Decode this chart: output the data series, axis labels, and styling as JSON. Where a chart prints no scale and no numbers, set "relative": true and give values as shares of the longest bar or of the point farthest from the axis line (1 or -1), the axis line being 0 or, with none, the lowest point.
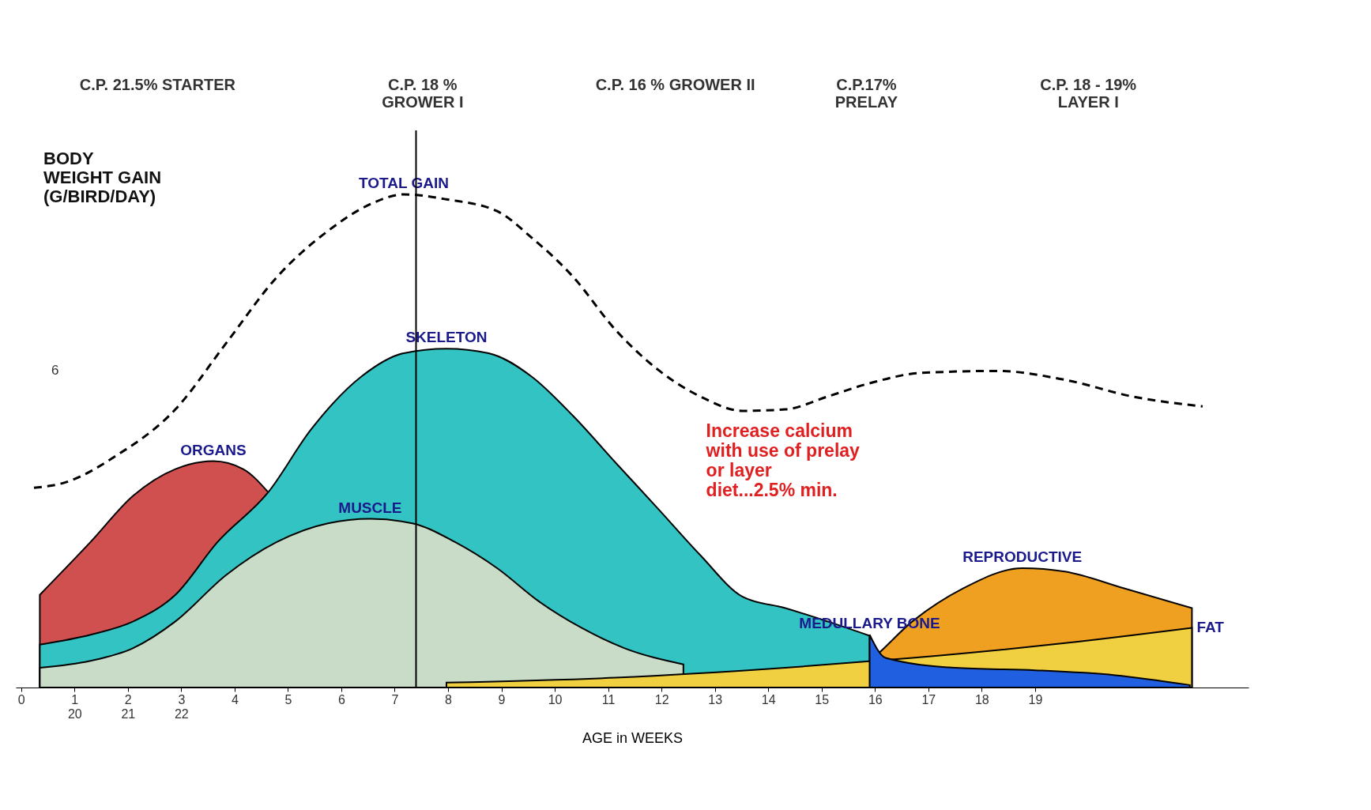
{
  "chart_data": {
    "type": "area",
    "relative": true,
    "xlabel": "AGE in WEEKS",
    "ylabel": "BODY\nWEIGHT GAIN\n(G/BIRD/DAY)",
    "grid": false,
    "xlim": [
      -0.1,
      23
    ],
    "xticks": [
      0,
      {
        "value": 1,
        "label": "1\n20"
      },
      {
        "value": 2,
        "label": "2\n21"
      },
      {
        "value": 3,
        "label": "3\n22"
      },
      4,
      5,
      6,
      7,
      8,
      9,
      10,
      11,
      12,
      13,
      14,
      15,
      16,
      17,
      18,
      19
    ],
    "ref_lines": [
      {
        "axis": "x",
        "value": 7.4
      }
    ],
    "series": [
      {
        "name": "ORGANS",
        "color": "#d05050",
        "x": [
          0.35,
          1.3,
          2.1,
          2.89,
          3.6,
          4.16,
          4.63
        ],
        "values": [
          0.188,
          0.295,
          0.389,
          0.443,
          0.459,
          0.443,
          0.396
        ]
      },
      {
        "name": "SKELETON",
        "color": "#33c3c3",
        "x": [
          0.35,
          1.3,
          2.1,
          2.89,
          3.68,
          4.63,
          5.43,
          6.38,
          7.17,
          7.97,
          8.76,
          9.56,
          10.35,
          11.14,
          11.94,
          12.73,
          13.52,
          14.32,
          15.11,
          15.9
        ],
        "values": [
          0.087,
          0.107,
          0.134,
          0.188,
          0.295,
          0.396,
          0.523,
          0.631,
          0.678,
          0.687,
          0.678,
          0.631,
          0.55,
          0.456,
          0.362,
          0.268,
          0.184,
          0.161,
          0.134,
          0.105
        ]
      },
      {
        "name": "MUSCLE",
        "color": "#c8dcc8",
        "x": [
          0.35,
          1.3,
          2.1,
          2.89,
          3.84,
          4.79,
          5.75,
          6.54,
          7.33,
          8.13,
          8.92,
          9.71,
          10.5,
          11.3,
          12.41
        ],
        "values": [
          0.04,
          0.054,
          0.08,
          0.134,
          0.228,
          0.295,
          0.333,
          0.342,
          0.333,
          0.295,
          0.242,
          0.174,
          0.121,
          0.08,
          0.047
        ]
      },
      {
        "name": "REPRODUCTIVE",
        "color": "#f0a020",
        "x": [
          14.95,
          15.9,
          16.7,
          17.65,
          18.76,
          19.56,
          20.67,
          21.94
        ],
        "values": [
          0,
          0.054,
          0.134,
          0.201,
          0.242,
          0.235,
          0.201,
          0.161
        ]
      },
      {
        "name": "FAT",
        "color": "#f0d040",
        "x": [
          7.97,
          11.14,
          14.32,
          16.7,
          19.56,
          21.94
        ],
        "values": [
          0.01,
          0.02,
          0.04,
          0.06,
          0.09,
          0.121
        ]
      },
      {
        "name": "MEDULLARY BONE",
        "color": "#2060e0",
        "x": [
          15.9,
          16.2,
          17.5,
          19,
          20.5,
          21.9
        ],
        "values": [
          0.107,
          0.06,
          0.04,
          0.035,
          0.025,
          0.005
        ]
      },
      {
        "name": "TOTAL GAIN",
        "type": "line",
        "line_style": "dashed",
        "color": "#000000",
        "x": [
          0.24,
          0.83,
          1.78,
          2.89,
          3.84,
          4.79,
          5.75,
          6.54,
          7.17,
          7.97,
          8.92,
          9.56,
          10.35,
          11.14,
          11.94,
          12.73,
          13.52,
          14.32,
          15.11,
          15.9,
          16.86,
          18.29,
          19.56,
          20.83,
          22.14
        ],
        "values": [
          0.405,
          0.416,
          0.47,
          0.564,
          0.698,
          0.832,
          0.926,
          0.98,
          1.0,
          0.99,
          0.966,
          0.913,
          0.832,
          0.725,
          0.644,
          0.59,
          0.561,
          0.564,
          0.59,
          0.617,
          0.638,
          0.642,
          0.624,
          0.59,
          0.57
        ]
      }
    ],
    "annotations": [
      "6",
      "Increase calcium\nwith use of prelay\nor layer\ndiet...2.5% min.",
      "C.P. 21.5% STARTER",
      "C.P. 18 %\nGROWER I",
      "C.P. 16 % GROWER II",
      "C.P.17%\nPRELAY",
      "C.P. 18 - 19%\nLAYER I"
    ]
  }
}
